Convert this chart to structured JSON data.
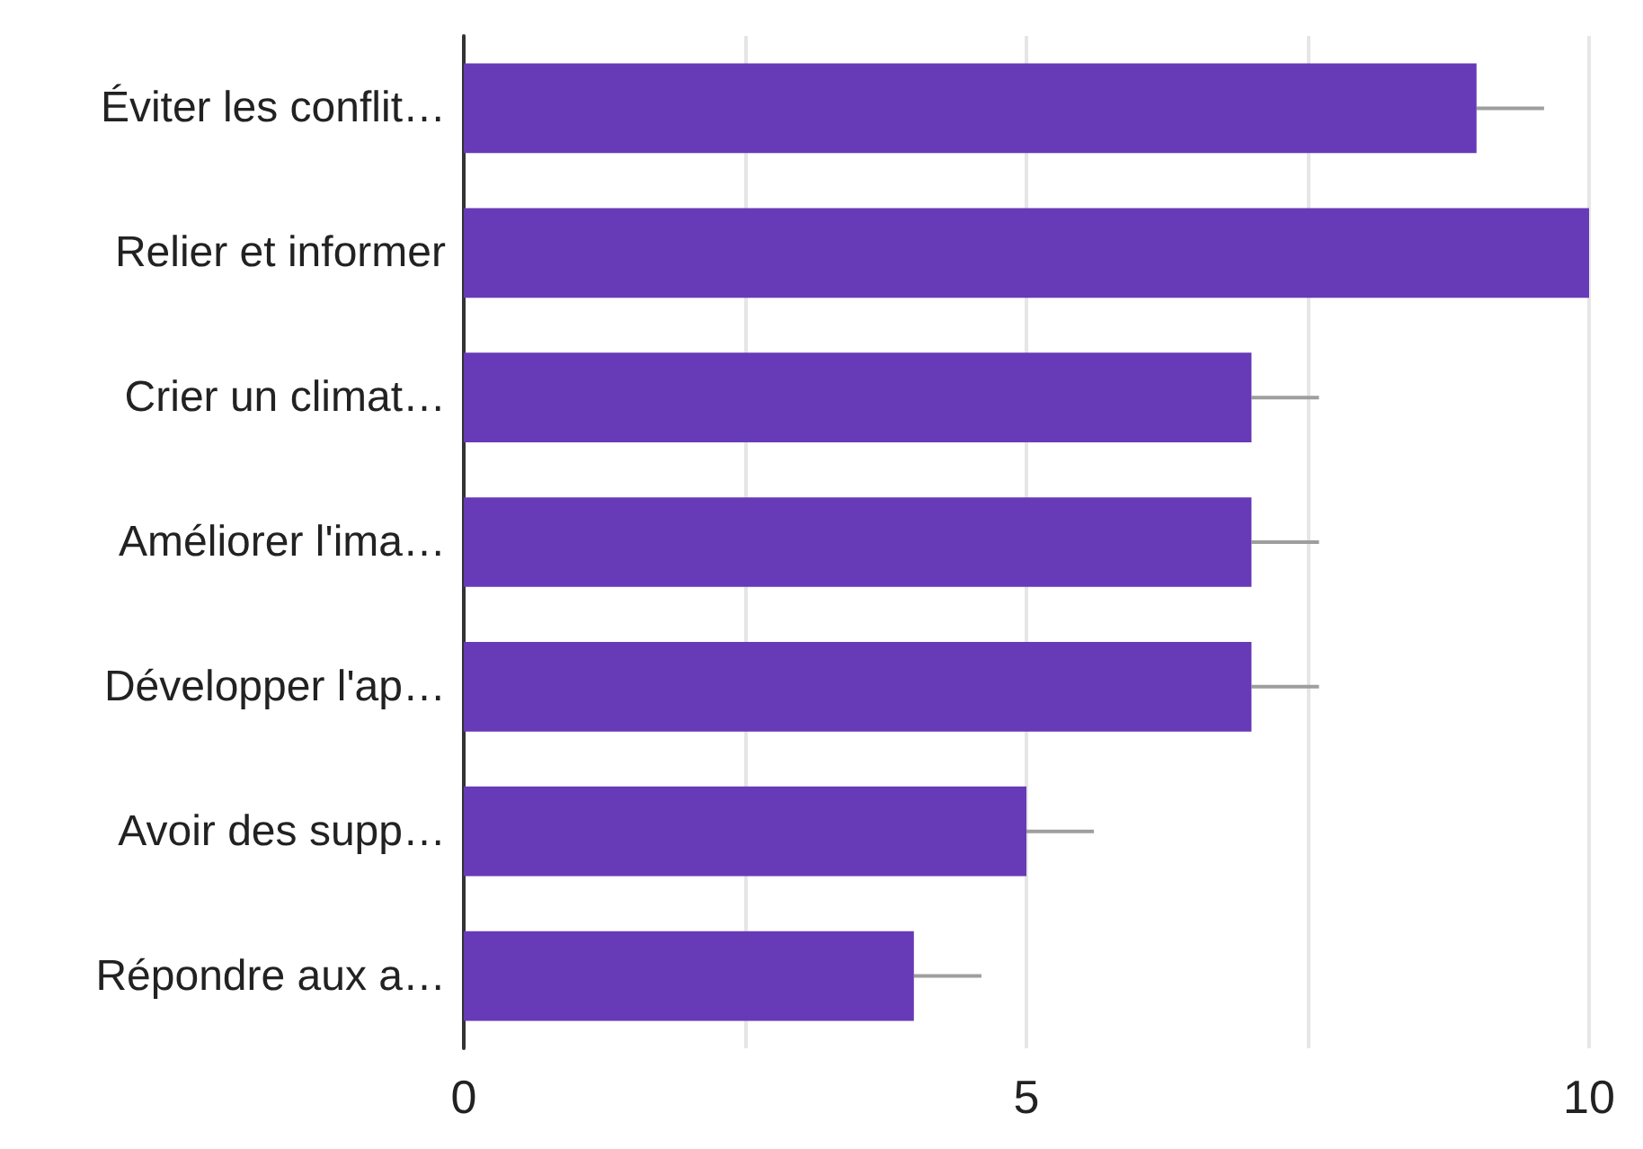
{
  "chart_data": {
    "type": "bar",
    "orientation": "horizontal",
    "categories": [
      "Éviter les conflit…",
      "Relier et informer",
      "Crier un climat…",
      "Améliorer l'ima…",
      "Développer l'ap…",
      "Avoir des supp…",
      "Répondre aux a…"
    ],
    "values": [
      9,
      10,
      7,
      7,
      7,
      5,
      4
    ],
    "errors": [
      [
        9,
        9.6
      ],
      null,
      [
        7,
        7.6
      ],
      [
        7,
        7.6
      ],
      [
        7,
        7.6
      ],
      [
        5,
        5.6
      ],
      [
        4,
        4.6
      ]
    ],
    "color": "#673ab7",
    "xlim": [
      0,
      10
    ],
    "xticks": [
      0,
      {
        "value": 2.5,
        "label": null
      },
      5,
      {
        "value": 7.5,
        "label": null
      },
      10
    ],
    "grid": "x"
  }
}
